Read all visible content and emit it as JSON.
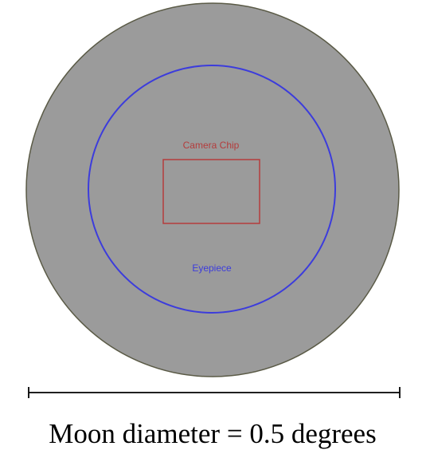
{
  "diagram": {
    "labels": {
      "camera_chip": "Camera Chip",
      "eyepiece": "Eyepiece",
      "caption": "Moon diameter = 0.5 degrees"
    },
    "colors": {
      "background": "#ffffff",
      "moon_fill": "#9b9b9b",
      "moon_stroke": "#5a5a46",
      "eyepiece_stroke": "#3c3cdc",
      "eyepiece_text": "#3c3cdc",
      "camera_chip_stroke": "#b43c3c",
      "camera_chip_text": "#b43c3c",
      "scale_bar": "#000000",
      "caption_text": "#000000"
    }
  }
}
